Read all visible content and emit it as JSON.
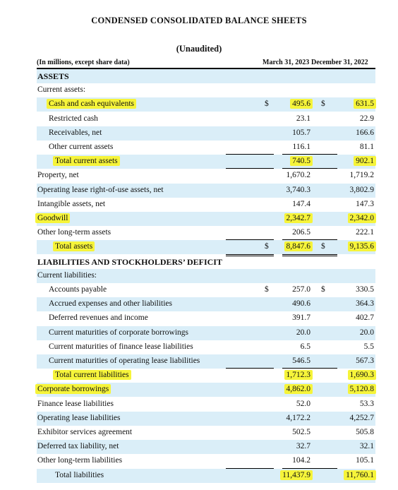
{
  "title": "CONDENSED CONSOLIDATED BALANCE SHEETS",
  "subtitle": "(Unaudited)",
  "header": {
    "label": "(In millions, except share data)",
    "col1": "March 31, 2023",
    "col2": "December 31, 2022"
  },
  "rows": [
    {
      "label": "ASSETS",
      "style": "section",
      "shaded": true
    },
    {
      "label": "Current assets:",
      "indent": 0,
      "shaded": false
    },
    {
      "label": "Cash and cash equivalents",
      "indent": 1,
      "shaded": true,
      "dollar1": "$",
      "v1": "495.6",
      "dollar2": "$",
      "v2": "631.5",
      "hl_label": true,
      "hl_v1": true,
      "hl_v2": true
    },
    {
      "label": "Restricted cash",
      "indent": 1,
      "shaded": false,
      "v1": "23.1",
      "v2": "22.9"
    },
    {
      "label": "Receivables, net",
      "indent": 1,
      "shaded": true,
      "v1": "105.7",
      "v2": "166.6"
    },
    {
      "label": "Other current assets",
      "indent": 1,
      "shaded": false,
      "v1": "116.1",
      "v2": "81.1"
    },
    {
      "label": "Total current assets",
      "indent": 2,
      "shaded": true,
      "v1": "740.5",
      "v2": "902.1",
      "hl_label": true,
      "hl_v1": true,
      "hl_v2": true
    },
    {
      "label": "Property, net",
      "indent": 0,
      "shaded": false,
      "v1": "1,670.2",
      "v2": "1,719.2"
    },
    {
      "label": "Operating lease right-of-use assets, net",
      "indent": 0,
      "shaded": true,
      "v1": "3,740.3",
      "v2": "3,802.9"
    },
    {
      "label": "Intangible assets, net",
      "indent": 0,
      "shaded": false,
      "v1": "147.4",
      "v2": "147.3"
    },
    {
      "label": "Goodwill",
      "indent": 0,
      "shaded": true,
      "v1": "2,342.7",
      "v2": "2,342.0",
      "hl_label": true,
      "hl_v1": true,
      "hl_v2": true
    },
    {
      "label": "Other long-term assets",
      "indent": 0,
      "shaded": false,
      "v1": "206.5",
      "v2": "222.1"
    },
    {
      "label": "Total assets",
      "indent": 2,
      "shaded": true,
      "dollar1": "$",
      "v1": "8,847.6",
      "dollar2": "$",
      "v2": "9,135.6",
      "hl_label": true,
      "hl_v1": true,
      "hl_v2": true
    },
    {
      "label": "LIABILITIES AND STOCKHOLDERS’ DEFICIT",
      "style": "section",
      "shaded": false
    },
    {
      "label": "Current liabilities:",
      "indent": 0,
      "shaded": true
    },
    {
      "label": "Accounts payable",
      "indent": 1,
      "shaded": false,
      "dollar1": "$",
      "v1": "257.0",
      "dollar2": "$",
      "v2": "330.5"
    },
    {
      "label": "Accrued expenses and other liabilities",
      "indent": 1,
      "shaded": true,
      "v1": "490.6",
      "v2": "364.3"
    },
    {
      "label": "Deferred revenues and income",
      "indent": 1,
      "shaded": false,
      "v1": "391.7",
      "v2": "402.7"
    },
    {
      "label": "Current maturities of corporate borrowings",
      "indent": 1,
      "shaded": true,
      "v1": "20.0",
      "v2": "20.0"
    },
    {
      "label": "Current maturities of finance lease liabilities",
      "indent": 1,
      "shaded": false,
      "v1": "6.5",
      "v2": "5.5"
    },
    {
      "label": "Current maturities of operating lease liabilities",
      "indent": 1,
      "shaded": true,
      "v1": "546.5",
      "v2": "567.3"
    },
    {
      "label": "Total current liabilities",
      "indent": 2,
      "shaded": false,
      "v1": "1,712.3",
      "v2": "1,690.3",
      "hl_label": true,
      "hl_v1": true,
      "hl_v2": true
    },
    {
      "label": "Corporate borrowings",
      "indent": 0,
      "shaded": true,
      "v1": "4,862.0",
      "v2": "5,120.8",
      "hl_label": true,
      "hl_v1": true,
      "hl_v2": true
    },
    {
      "label": "Finance lease liabilities",
      "indent": 0,
      "shaded": false,
      "v1": "52.0",
      "v2": "53.3"
    },
    {
      "label": "Operating lease liabilities",
      "indent": 0,
      "shaded": true,
      "v1": "4,172.2",
      "v2": "4,252.7"
    },
    {
      "label": "Exhibitor services agreement",
      "indent": 0,
      "shaded": false,
      "v1": "502.5",
      "v2": "505.8"
    },
    {
      "label": "Deferred tax liability, net",
      "indent": 0,
      "shaded": true,
      "v1": "32.7",
      "v2": "32.1"
    },
    {
      "label": "Other long-term liabilities",
      "indent": 0,
      "shaded": false,
      "v1": "104.2",
      "v2": "105.1"
    },
    {
      "label": "Total liabilities",
      "indent": 2,
      "shaded": true,
      "v1": "11,437.9",
      "v2": "11,760.1",
      "hl_v1": true,
      "hl_v2": true
    }
  ],
  "highlight_color": "#f6f43a",
  "shade_color": "#daeef8"
}
